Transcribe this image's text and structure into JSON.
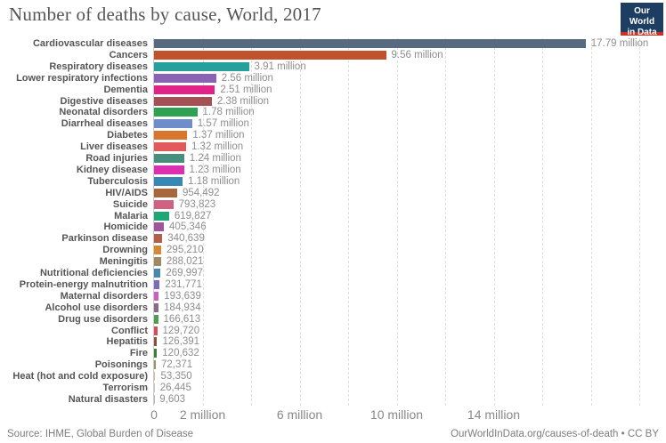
{
  "header": {
    "title": "Number of deaths by cause, World, 2017",
    "logo": {
      "line1": "Our World",
      "line2": "in Data"
    }
  },
  "chart_data": {
    "type": "bar",
    "orientation": "horizontal",
    "title": "Number of deaths by cause, World, 2017",
    "xlabel": "",
    "ylabel": "",
    "xlim": [
      0,
      21000000
    ],
    "grid": "vertical-dashed",
    "gridline_step": 2000000,
    "gridline_max": 20000000,
    "categories": [
      "Cardiovascular diseases",
      "Cancers",
      "Respiratory diseases",
      "Lower respiratory infections",
      "Dementia",
      "Digestive diseases",
      "Neonatal disorders",
      "Diarrheal diseases",
      "Diabetes",
      "Liver diseases",
      "Road injuries",
      "Kidney disease",
      "Tuberculosis",
      "HIV/AIDS",
      "Suicide",
      "Malaria",
      "Homicide",
      "Parkinson disease",
      "Drowning",
      "Meningitis",
      "Nutritional deficiencies",
      "Protein-energy malnutrition",
      "Maternal disorders",
      "Alcohol use disorders",
      "Drug use disorders",
      "Conflict",
      "Hepatitis",
      "Fire",
      "Poisonings",
      "Heat (hot and cold exposure)",
      "Terrorism",
      "Natural disasters"
    ],
    "values": [
      17790000,
      9560000,
      3910000,
      2560000,
      2510000,
      2380000,
      1780000,
      1570000,
      1370000,
      1320000,
      1240000,
      1230000,
      1180000,
      954492,
      793823,
      619827,
      405346,
      340639,
      295210,
      288021,
      269997,
      231771,
      193639,
      184934,
      166613,
      129720,
      126391,
      120632,
      72371,
      53350,
      26445,
      9603
    ],
    "value_labels": [
      "17.79 million",
      "9.56 million",
      "3.91 million",
      "2.56 million",
      "2.51 million",
      "2.38 million",
      "1.78 million",
      "1.57 million",
      "1.37 million",
      "1.32 million",
      "1.24 million",
      "1.23 million",
      "1.18 million",
      "954,492",
      "793,823",
      "619,827",
      "405,346",
      "340,639",
      "295,210",
      "288,021",
      "269,997",
      "231,771",
      "193,639",
      "184,934",
      "166,613",
      "129,720",
      "126,391",
      "120,632",
      "72,371",
      "53,350",
      "26,445",
      "9,603"
    ],
    "colors": [
      "#586a80",
      "#c1532c",
      "#27a09d",
      "#8a63b6",
      "#e02487",
      "#a64f54",
      "#2fa153",
      "#6e8ec9",
      "#d9762e",
      "#e25a5c",
      "#468e7e",
      "#dd30b1",
      "#3788b4",
      "#a8663d",
      "#d06180",
      "#20a674",
      "#a1549e",
      "#b26049",
      "#d5882f",
      "#9d8a62",
      "#4887b0",
      "#7e6bbf",
      "#cc5fc6",
      "#8a6a85",
      "#4f9e54",
      "#dd4a5d",
      "#8a4f3d",
      "#3c7e35",
      "#8f9a5e",
      "#dcb98c",
      "#c6c6c6",
      "#b8b8b8"
    ],
    "x_axis_ticks": [
      {
        "value": 0,
        "label": "0"
      },
      {
        "value": 2000000,
        "label": "2 million"
      },
      {
        "value": 6000000,
        "label": "6 million"
      },
      {
        "value": 10000000,
        "label": "10 million"
      },
      {
        "value": 14000000,
        "label": "14 million"
      }
    ],
    "legend": "none"
  },
  "footer": {
    "source": "Source: IHME, Global Burden of Disease",
    "attribution": "OurWorldInData.org/causes-of-death • CC BY"
  }
}
